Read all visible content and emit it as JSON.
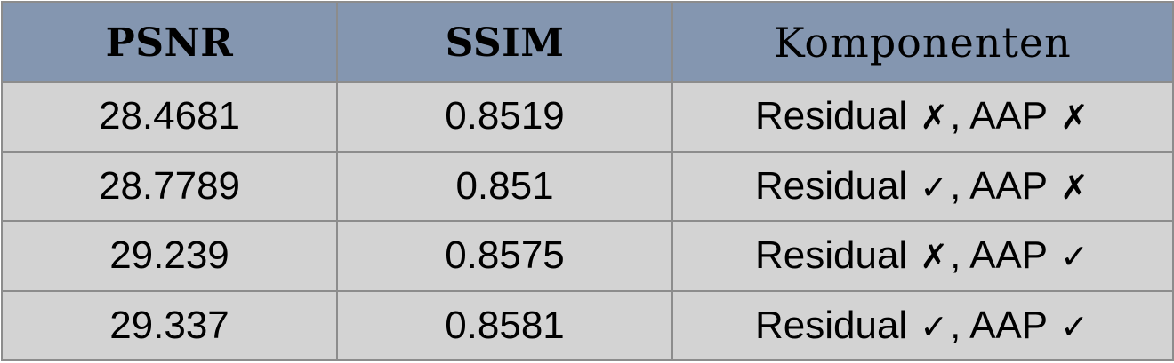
{
  "table": {
    "headers": [
      "PSNR",
      "SSIM",
      "Komponenten"
    ],
    "rows": [
      {
        "psnr": "28.4681",
        "ssim": "0.8519",
        "residual_label": "Residual",
        "residual_mark": "✗",
        "aap_label": ", AAP",
        "aap_mark": "✗"
      },
      {
        "psnr": "28.7789",
        "ssim": "0.851",
        "residual_label": "Residual",
        "residual_mark": "✓",
        "aap_label": ", AAP",
        "aap_mark": "✗"
      },
      {
        "psnr": "29.239",
        "ssim": "0.8575",
        "residual_label": "Residual",
        "residual_mark": "✗",
        "aap_label": ", AAP",
        "aap_mark": "✓"
      },
      {
        "psnr": "29.337",
        "ssim": "0.8581",
        "residual_label": "Residual",
        "residual_mark": "✓",
        "aap_label": ", AAP",
        "aap_mark": "✓"
      }
    ]
  },
  "colors": {
    "header_bg": "#8496b0",
    "row_bg": "#d3d3d3",
    "border": "#8c8c8c"
  }
}
